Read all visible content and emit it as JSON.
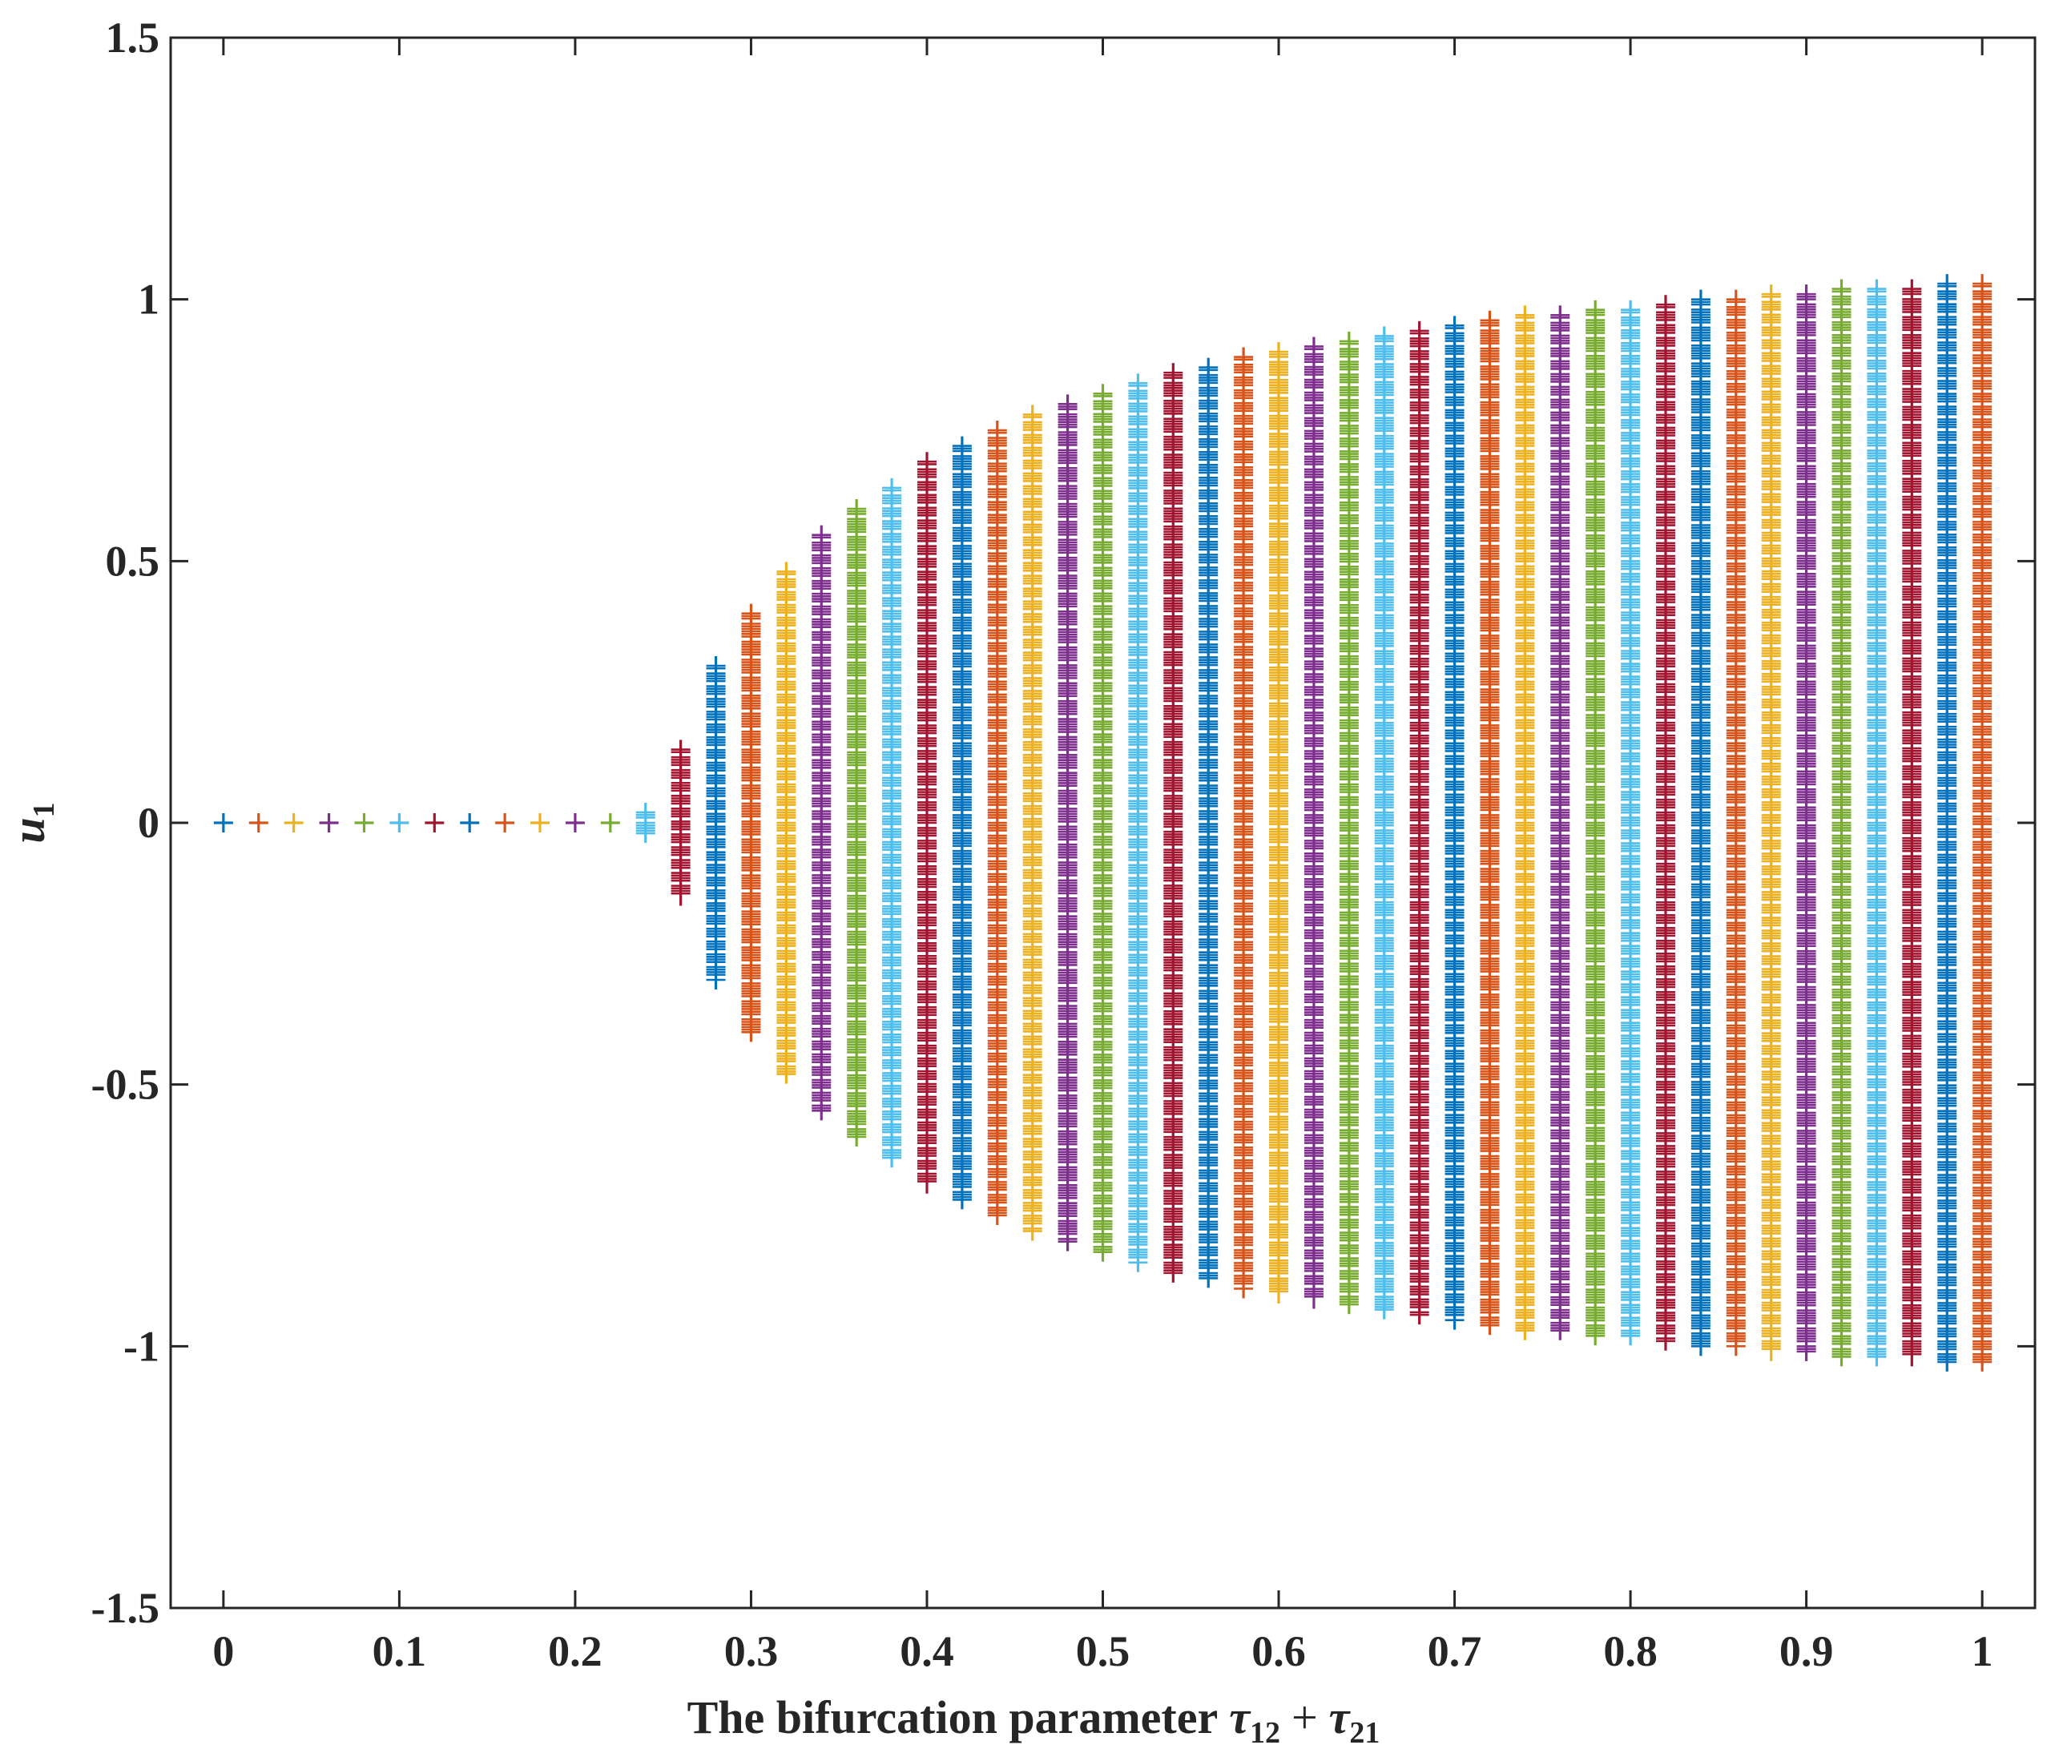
{
  "chart_data": {
    "type": "scatter",
    "title": "",
    "xlabel": {
      "text": "The bifurcation parameter",
      "math": [
        {
          "sym": "τ",
          "sub": "12"
        },
        {
          "op": "+"
        },
        {
          "sym": "τ",
          "sub": "21"
        }
      ]
    },
    "ylabel": {
      "sym": "u",
      "sub": "1"
    },
    "xlim": [
      -0.03,
      1.03
    ],
    "ylim": [
      -1.5,
      1.5
    ],
    "x_ticks": [
      0,
      0.1,
      0.2,
      0.3,
      0.4,
      0.5,
      0.6,
      0.7,
      0.8,
      0.9,
      1
    ],
    "x_tick_labels": [
      "0",
      "0.1",
      "0.2",
      "0.3",
      "0.4",
      "0.5",
      "0.6",
      "0.7",
      "0.8",
      "0.9",
      "1"
    ],
    "y_ticks": [
      -1.5,
      -1,
      -0.5,
      0,
      0.5,
      1,
      1.5
    ],
    "y_tick_labels": [
      "-1.5",
      "-1",
      "-0.5",
      "0",
      "0.5",
      "1",
      "1.5"
    ],
    "grid": false,
    "marker": "+",
    "colors": [
      "#0072BD",
      "#D95319",
      "#EDB120",
      "#7E2F8E",
      "#77AC30",
      "#4DBEEE",
      "#A2142F"
    ],
    "series": [
      {
        "x": 0.0,
        "min": 0,
        "max": 0
      },
      {
        "x": 0.02,
        "min": 0,
        "max": 0
      },
      {
        "x": 0.04,
        "min": 0,
        "max": 0
      },
      {
        "x": 0.06,
        "min": 0,
        "max": 0
      },
      {
        "x": 0.08,
        "min": 0,
        "max": 0
      },
      {
        "x": 0.1,
        "min": 0,
        "max": 0
      },
      {
        "x": 0.12,
        "min": 0,
        "max": 0
      },
      {
        "x": 0.14,
        "min": 0,
        "max": 0
      },
      {
        "x": 0.16,
        "min": 0,
        "max": 0
      },
      {
        "x": 0.18,
        "min": 0,
        "max": 0
      },
      {
        "x": 0.2,
        "min": 0,
        "max": 0
      },
      {
        "x": 0.22,
        "min": 0,
        "max": 0
      },
      {
        "x": 0.24,
        "min": -0.02,
        "max": 0.02
      },
      {
        "x": 0.26,
        "min": -0.14,
        "max": 0.14
      },
      {
        "x": 0.28,
        "min": -0.3,
        "max": 0.3
      },
      {
        "x": 0.3,
        "min": -0.4,
        "max": 0.4
      },
      {
        "x": 0.32,
        "min": -0.48,
        "max": 0.48
      },
      {
        "x": 0.34,
        "min": -0.55,
        "max": 0.55
      },
      {
        "x": 0.36,
        "min": -0.6,
        "max": 0.6
      },
      {
        "x": 0.38,
        "min": -0.64,
        "max": 0.64
      },
      {
        "x": 0.4,
        "min": -0.69,
        "max": 0.69
      },
      {
        "x": 0.42,
        "min": -0.72,
        "max": 0.72
      },
      {
        "x": 0.44,
        "min": -0.75,
        "max": 0.75
      },
      {
        "x": 0.46,
        "min": -0.78,
        "max": 0.78
      },
      {
        "x": 0.48,
        "min": -0.8,
        "max": 0.8
      },
      {
        "x": 0.5,
        "min": -0.82,
        "max": 0.82
      },
      {
        "x": 0.52,
        "min": -0.84,
        "max": 0.84
      },
      {
        "x": 0.54,
        "min": -0.86,
        "max": 0.86
      },
      {
        "x": 0.56,
        "min": -0.87,
        "max": 0.87
      },
      {
        "x": 0.58,
        "min": -0.89,
        "max": 0.89
      },
      {
        "x": 0.6,
        "min": -0.9,
        "max": 0.9
      },
      {
        "x": 0.62,
        "min": -0.91,
        "max": 0.91
      },
      {
        "x": 0.64,
        "min": -0.92,
        "max": 0.92
      },
      {
        "x": 0.66,
        "min": -0.93,
        "max": 0.93
      },
      {
        "x": 0.68,
        "min": -0.94,
        "max": 0.94
      },
      {
        "x": 0.7,
        "min": -0.95,
        "max": 0.95
      },
      {
        "x": 0.72,
        "min": -0.96,
        "max": 0.96
      },
      {
        "x": 0.74,
        "min": -0.97,
        "max": 0.97
      },
      {
        "x": 0.76,
        "min": -0.97,
        "max": 0.97
      },
      {
        "x": 0.78,
        "min": -0.98,
        "max": 0.98
      },
      {
        "x": 0.8,
        "min": -0.98,
        "max": 0.98
      },
      {
        "x": 0.82,
        "min": -0.99,
        "max": 0.99
      },
      {
        "x": 0.84,
        "min": -1.0,
        "max": 1.0
      },
      {
        "x": 0.86,
        "min": -1.0,
        "max": 1.0
      },
      {
        "x": 0.88,
        "min": -1.01,
        "max": 1.01
      },
      {
        "x": 0.9,
        "min": -1.01,
        "max": 1.01
      },
      {
        "x": 0.92,
        "min": -1.02,
        "max": 1.02
      },
      {
        "x": 0.94,
        "min": -1.02,
        "max": 1.02
      },
      {
        "x": 0.96,
        "min": -1.02,
        "max": 1.02
      },
      {
        "x": 0.98,
        "min": -1.03,
        "max": 1.03
      },
      {
        "x": 1.0,
        "min": -1.03,
        "max": 1.03
      }
    ]
  }
}
